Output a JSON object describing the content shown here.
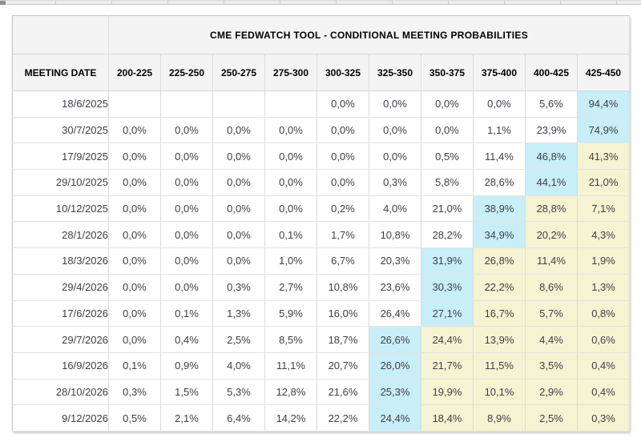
{
  "colors": {
    "c": "#c8eef7",
    "y": "#f6f3d2",
    "header_bg": "#f4f4f4"
  },
  "chart_data": {
    "type": "table",
    "title": "CME FEDWATCH TOOL - CONDITIONAL MEETING PROBABILITIES",
    "row_header": "MEETING DATE",
    "columns": [
      "200-225",
      "225-250",
      "250-275",
      "275-300",
      "300-325",
      "325-350",
      "350-375",
      "375-400",
      "400-425",
      "425-450"
    ],
    "rows": [
      {
        "date": "18/6/2025",
        "values": [
          "",
          "",
          "",
          "",
          "0,0%",
          "0,0%",
          "0,0%",
          "0,0%",
          "5,6%",
          "94,4%"
        ],
        "hl": [
          "",
          "",
          "",
          "",
          "",
          "",
          "",
          "",
          "",
          "c"
        ]
      },
      {
        "date": "30/7/2025",
        "values": [
          "0,0%",
          "0,0%",
          "0,0%",
          "0,0%",
          "0,0%",
          "0,0%",
          "0,0%",
          "1,1%",
          "23,9%",
          "74,9%"
        ],
        "hl": [
          "",
          "",
          "",
          "",
          "",
          "",
          "",
          "",
          "",
          "c"
        ]
      },
      {
        "date": "17/9/2025",
        "values": [
          "0,0%",
          "0,0%",
          "0,0%",
          "0,0%",
          "0,0%",
          "0,0%",
          "0,5%",
          "11,4%",
          "46,8%",
          "41,3%"
        ],
        "hl": [
          "",
          "",
          "",
          "",
          "",
          "",
          "",
          "",
          "c",
          "y"
        ]
      },
      {
        "date": "29/10/2025",
        "values": [
          "0,0%",
          "0,0%",
          "0,0%",
          "0,0%",
          "0,0%",
          "0,3%",
          "5,8%",
          "28,6%",
          "44,1%",
          "21,0%"
        ],
        "hl": [
          "",
          "",
          "",
          "",
          "",
          "",
          "",
          "",
          "c",
          "y"
        ]
      },
      {
        "date": "10/12/2025",
        "values": [
          "0,0%",
          "0,0%",
          "0,0%",
          "0,0%",
          "0,2%",
          "4,0%",
          "21,0%",
          "38,9%",
          "28,8%",
          "7,1%"
        ],
        "hl": [
          "",
          "",
          "",
          "",
          "",
          "",
          "",
          "c",
          "y",
          "y"
        ]
      },
      {
        "date": "28/1/2026",
        "values": [
          "0,0%",
          "0,0%",
          "0,0%",
          "0,1%",
          "1,7%",
          "10,8%",
          "28,2%",
          "34,9%",
          "20,2%",
          "4,3%"
        ],
        "hl": [
          "",
          "",
          "",
          "",
          "",
          "",
          "",
          "c",
          "y",
          "y"
        ]
      },
      {
        "date": "18/3/2026",
        "values": [
          "0,0%",
          "0,0%",
          "0,0%",
          "1,0%",
          "6,7%",
          "20,3%",
          "31,9%",
          "26,8%",
          "11,4%",
          "1,9%"
        ],
        "hl": [
          "",
          "",
          "",
          "",
          "",
          "",
          "c",
          "y",
          "y",
          "y"
        ]
      },
      {
        "date": "29/4/2026",
        "values": [
          "0,0%",
          "0,0%",
          "0,3%",
          "2,7%",
          "10,8%",
          "23,6%",
          "30,3%",
          "22,2%",
          "8,6%",
          "1,3%"
        ],
        "hl": [
          "",
          "",
          "",
          "",
          "",
          "",
          "c",
          "y",
          "y",
          "y"
        ]
      },
      {
        "date": "17/6/2026",
        "values": [
          "0,0%",
          "0,1%",
          "1,3%",
          "5,9%",
          "16,0%",
          "26,4%",
          "27,1%",
          "16,7%",
          "5,7%",
          "0,8%"
        ],
        "hl": [
          "",
          "",
          "",
          "",
          "",
          "",
          "c",
          "y",
          "y",
          "y"
        ]
      },
      {
        "date": "29/7/2026",
        "values": [
          "0,0%",
          "0,4%",
          "2,5%",
          "8,5%",
          "18,7%",
          "26,6%",
          "24,4%",
          "13,9%",
          "4,4%",
          "0,6%"
        ],
        "hl": [
          "",
          "",
          "",
          "",
          "",
          "c",
          "y",
          "y",
          "y",
          "y"
        ]
      },
      {
        "date": "16/9/2026",
        "values": [
          "0,1%",
          "0,9%",
          "4,0%",
          "11,1%",
          "20,7%",
          "26,0%",
          "21,7%",
          "11,5%",
          "3,5%",
          "0,4%"
        ],
        "hl": [
          "",
          "",
          "",
          "",
          "",
          "c",
          "y",
          "y",
          "y",
          "y"
        ]
      },
      {
        "date": "28/10/2026",
        "values": [
          "0,3%",
          "1,5%",
          "5,3%",
          "12,8%",
          "21,6%",
          "25,3%",
          "19,9%",
          "10,1%",
          "2,9%",
          "0,4%"
        ],
        "hl": [
          "",
          "",
          "",
          "",
          "",
          "c",
          "y",
          "y",
          "y",
          "y"
        ]
      },
      {
        "date": "9/12/2026",
        "values": [
          "0,5%",
          "2,1%",
          "6,4%",
          "14,2%",
          "22,2%",
          "24,4%",
          "18,4%",
          "8,9%",
          "2,5%",
          "0,3%"
        ],
        "hl": [
          "",
          "",
          "",
          "",
          "",
          "c",
          "y",
          "y",
          "y",
          "y"
        ]
      }
    ]
  }
}
